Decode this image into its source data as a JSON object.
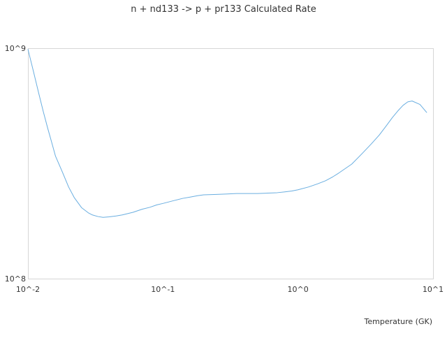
{
  "chart_data": {
    "type": "line",
    "title": "n + nd133 -> p + pr133 Calculated Rate",
    "xlabel": "Temperature (GK)",
    "ylabel": "",
    "x_scale": "log",
    "y_scale": "log",
    "xlim": [
      0.01,
      10
    ],
    "ylim": [
      100000000,
      1000000000
    ],
    "x_ticks": [
      {
        "value": 0.01,
        "label": "10^-2"
      },
      {
        "value": 0.1,
        "label": "10^-1"
      },
      {
        "value": 1,
        "label": "10^0"
      },
      {
        "value": 10,
        "label": "10^1"
      }
    ],
    "y_ticks": [
      {
        "value": 100000000,
        "label": "10^8"
      },
      {
        "value": 1000000000,
        "label": "10^9"
      }
    ],
    "grid": false,
    "legend": "none",
    "series": [
      {
        "color": "#6aaee0",
        "x": [
          0.01,
          0.011,
          0.012,
          0.013,
          0.014,
          0.015,
          0.016,
          0.018,
          0.02,
          0.022,
          0.025,
          0.028,
          0.03,
          0.033,
          0.036,
          0.04,
          0.045,
          0.05,
          0.06,
          0.07,
          0.08,
          0.09,
          0.1,
          0.12,
          0.14,
          0.16,
          0.18,
          0.2,
          0.25,
          0.3,
          0.35,
          0.4,
          0.5,
          0.6,
          0.7,
          0.8,
          0.9,
          1,
          1.2,
          1.4,
          1.6,
          1.8,
          2,
          2.5,
          3,
          3.5,
          4,
          4.5,
          5,
          5.5,
          6,
          6.5,
          7,
          8,
          9
        ],
        "y": [
          990000000,
          790000000,
          640000000,
          530000000,
          450000000,
          390000000,
          340000000,
          290000000,
          250000000,
          225000000,
          203000000,
          193000000,
          189000000,
          186000000,
          184500000,
          185500000,
          187000000,
          189000000,
          194000000,
          200000000,
          204000000,
          209000000,
          212000000,
          218000000,
          223000000,
          226000000,
          229000000,
          231000000,
          232000000,
          233000000,
          234000000,
          234000000,
          234000000,
          235000000,
          236000000,
          238000000,
          240000000,
          243000000,
          250000000,
          258000000,
          266000000,
          276000000,
          287000000,
          314000000,
          350000000,
          385000000,
          420000000,
          460000000,
          500000000,
          535000000,
          565000000,
          585000000,
          590000000,
          570000000,
          525000000
        ]
      }
    ]
  }
}
